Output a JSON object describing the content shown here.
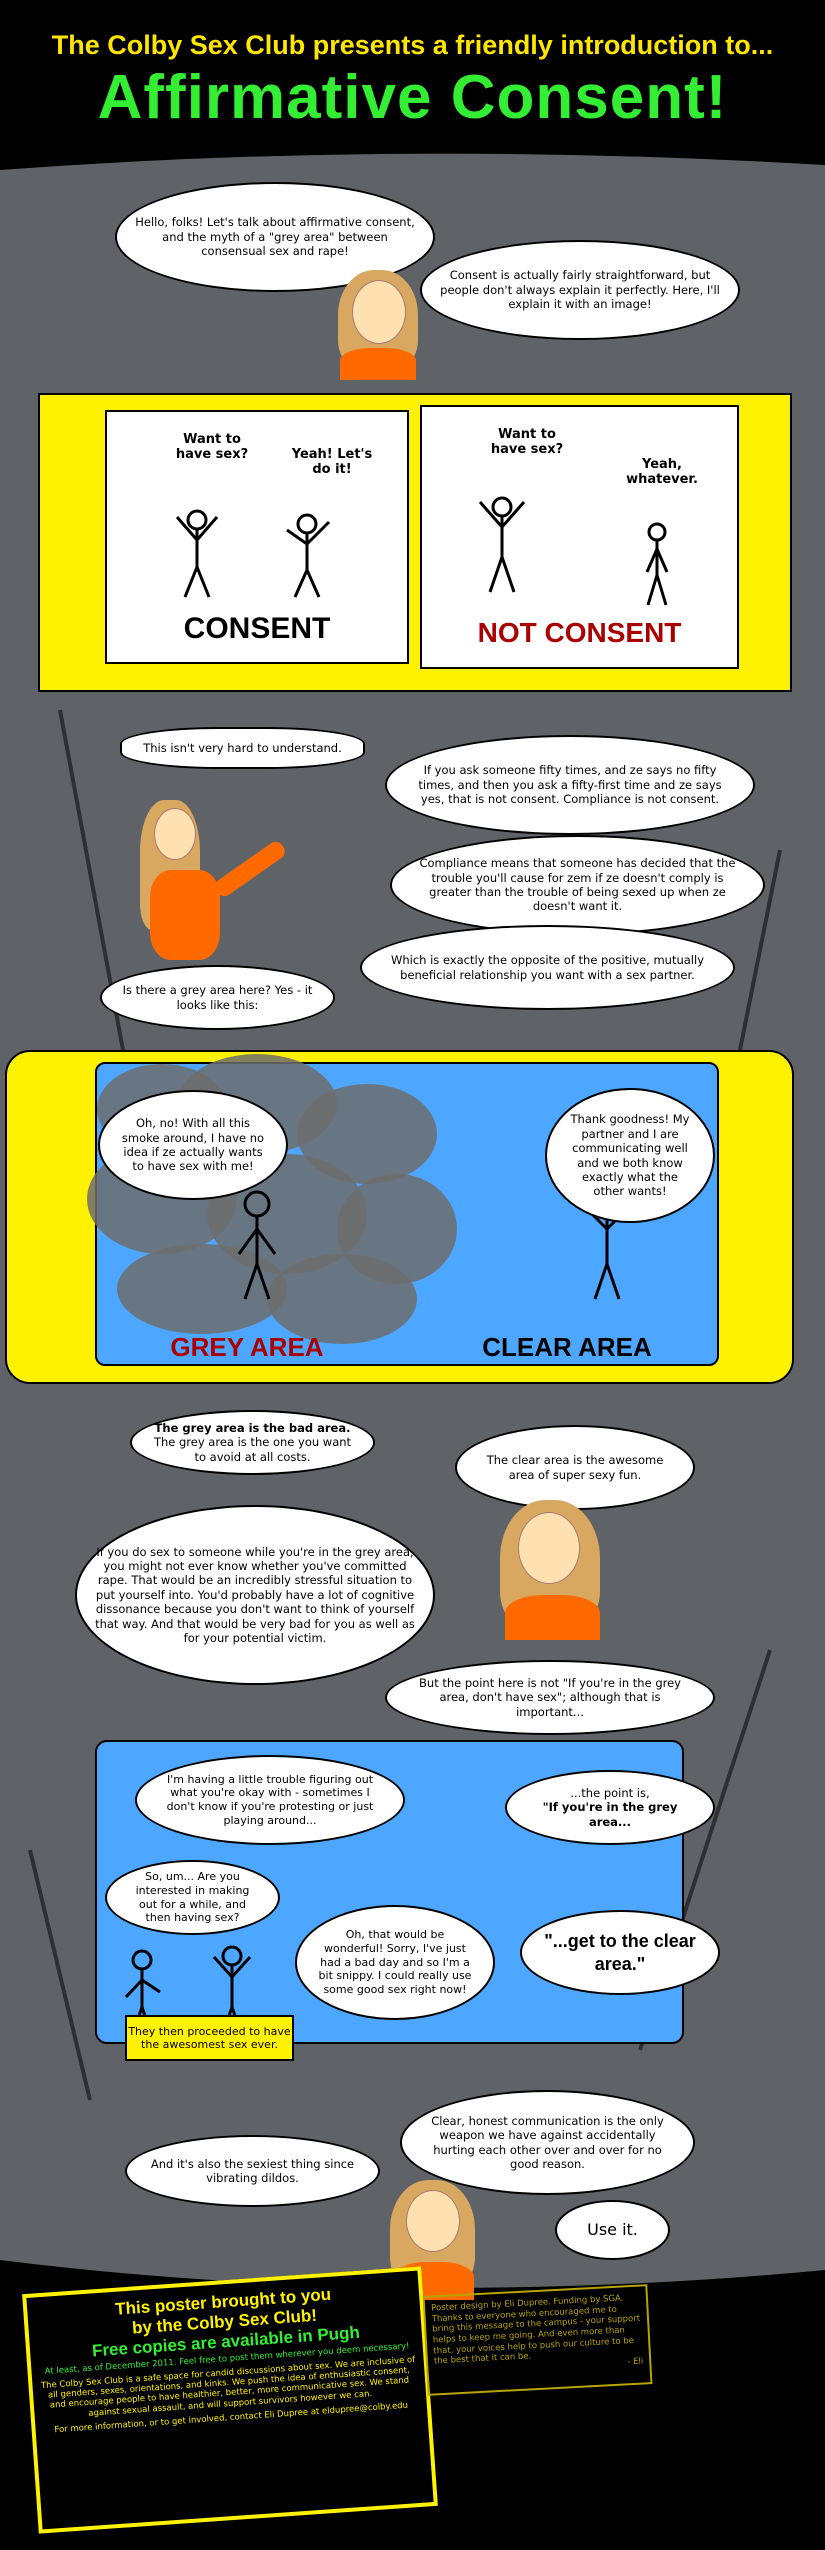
{
  "header": {
    "intro": "The Colby Sex Club presents a friendly introduction to...",
    "title": "Affirmative Consent!"
  },
  "section1": {
    "b1": "Hello, folks! Let's talk about affirmative consent, and the myth of a \"grey area\" between consensual sex and rape!",
    "b2": "Consent is actually fairly straightforward, but people don't always explain it perfectly. Here, I'll explain it with an image!"
  },
  "panel_consent": {
    "q": "Want to have sex?",
    "a": "Yeah! Let's do it!",
    "caption": "CONSENT"
  },
  "panel_not_consent": {
    "q": "Want to have sex?",
    "a": "Yeah, whatever.",
    "caption": "NOT CONSENT"
  },
  "section2": {
    "b1": "This isn't very hard to understand.",
    "b2": "If you ask someone fifty times, and ze says no fifty times, and then you ask a fifty-first time and ze says yes, that is not consent. Compliance is not consent.",
    "b3": "Compliance means that someone has decided that the trouble you'll cause for zem if ze doesn't comply is greater than the trouble of being sexed up when ze doesn't want it.",
    "b4": "Which is exactly the opposite of the positive, mutually beneficial relationship you want with a sex partner.",
    "b5": "Is there a grey area here? Yes - it looks like this:"
  },
  "grey_panel": {
    "b_left": "Oh, no! With all this smoke around, I have no idea if ze actually wants to have sex with me!",
    "b_right": "Thank goodness! My partner and I are communicating well and we both know exactly what the other wants!",
    "cap_left": "GREY AREA",
    "cap_right": "CLEAR AREA"
  },
  "section3": {
    "b1_bold": "The grey area is the bad area.",
    "b1_rest": "The grey area is the one you want to avoid at all costs.",
    "b2": "The clear area is the awesome area of super sexy fun.",
    "b3": "If you do sex to someone while you're in the grey area, you might not ever know whether you've committed rape. That would be an incredibly stressful situation to put yourself into. You'd probably have a lot of cognitive dissonance because you don't want to think of yourself that way. And that would be very bad for you as well as for your potential victim.",
    "b4": "But the point here is not \"If you're in the grey area, don't have sex\"; although that is important...",
    "b5_a": "...the point is,",
    "b5_b": "\"If you're in the grey area...",
    "b6": "\"...get to the clear area.\""
  },
  "blue_panel": {
    "b1": "I'm having a little trouble figuring out what you're okay with - sometimes I don't know if you're protesting or just playing around...",
    "b2": "So, um... Are you interested in making out for a while, and then having sex?",
    "b3": "Oh, that would be wonderful! Sorry, I've just had a bad day and so I'm a bit snippy. I could really use some good sex right now!",
    "note": "They then proceeded to have the awesomest sex ever."
  },
  "section4": {
    "b1": "Clear, honest communication is the only weapon we have against accidentally hurting each other over and over for no good reason.",
    "b2": "And it's also the sexiest thing since vibrating dildos.",
    "b3": "Use it."
  },
  "footer": {
    "l1": "This poster brought to you",
    "l2": "by the Colby Sex Club!",
    "l3": "Free copies are available in Pugh",
    "l4": "At least, as of December 2011. Feel free to post them wherever you deem necessary!",
    "l5": "The Colby Sex Club is a safe space for candid discussions about sex. We are inclusive of all genders, sexes, orientations, and kinks. We push the idea of enthusiastic consent, and encourage people to have healthier, better, more communicative sex. We stand against sexual assault, and will support survivors however we can.",
    "l6": "For more information, or to get involved, contact Eli Dupree at eldupree@colby.edu",
    "credit": "Poster design by Eli Dupree. Funding by SGA. Thanks to everyone who encouraged me to bring this message to the campus - your support helps to keep me going. And even more than that, your voices help to push our culture to be the best that it can be.",
    "credit_sig": "- Eli"
  },
  "colors": {
    "background": "#000000",
    "grey_band": "#5f6368",
    "yellow": "#fff200",
    "green": "#33ee33",
    "red": "#aa0000",
    "blue": "#4da6ff"
  }
}
